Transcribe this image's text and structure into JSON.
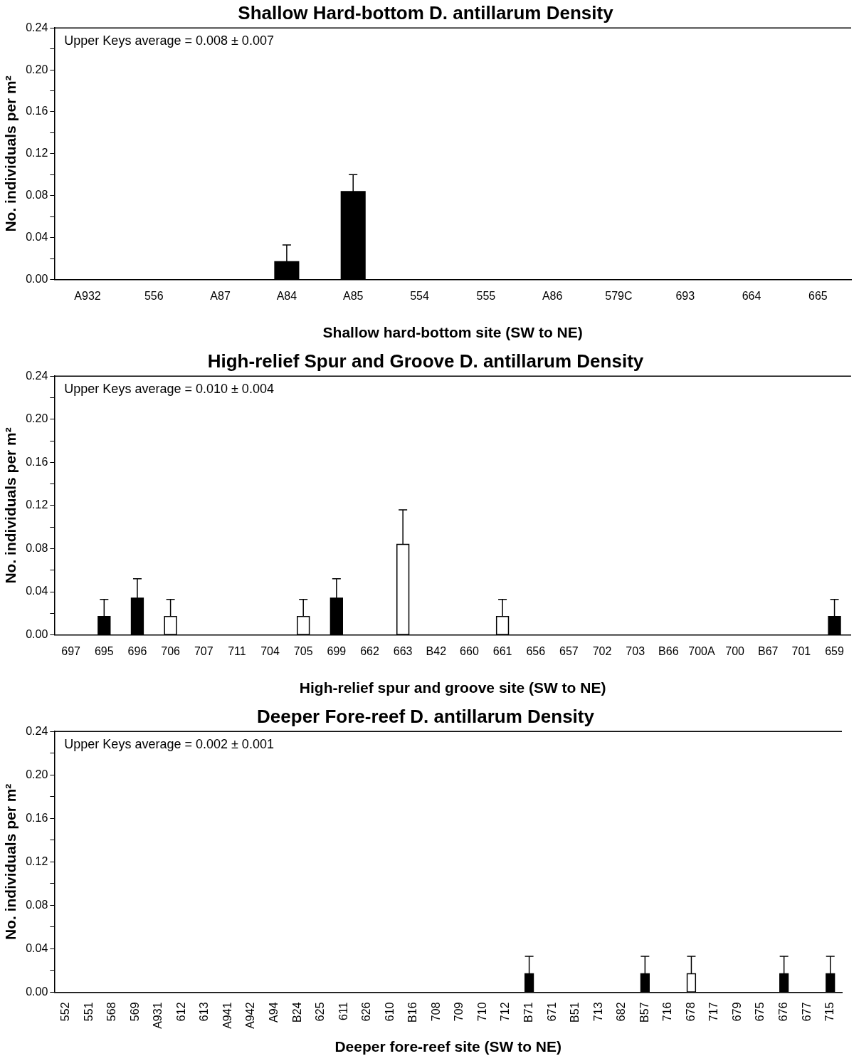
{
  "chart_data": [
    {
      "type": "bar",
      "title": "Shallow Hard-bottom D. antillarum Density",
      "xlabel": "Shallow hard-bottom site (SW to NE)",
      "ylabel": "No. individuals per m²",
      "annotations": [
        "Upper Keys average = 0.008 ± 0.007"
      ],
      "categories": [
        "A932",
        "556",
        "A87",
        "A84",
        "A85",
        "554",
        "555",
        "A86",
        "579C",
        "693",
        "664",
        "665"
      ],
      "values": [
        0,
        0,
        0,
        0.017,
        0.084,
        0,
        0,
        0,
        0,
        0,
        0,
        0
      ],
      "errors": [
        null,
        null,
        null,
        0.016,
        0.016,
        null,
        null,
        null,
        null,
        null,
        null,
        null
      ],
      "colors": [
        "#000000",
        "#000000",
        "#000000",
        "#000000",
        "#000000",
        "#000000",
        "#000000",
        "#000000",
        "#000000",
        "#000000",
        "#000000",
        "#000000"
      ],
      "ylim": [
        0,
        0.24
      ],
      "yticks": [
        {
          "value": 0,
          "label": "0.00"
        },
        {
          "value": 0.02,
          "label": null
        },
        {
          "value": 0.04,
          "label": "0.04"
        },
        {
          "value": 0.06,
          "label": null
        },
        {
          "value": 0.08,
          "label": "0.08"
        },
        {
          "value": 0.1,
          "label": null
        },
        {
          "value": 0.12,
          "label": "0.12"
        },
        {
          "value": 0.14,
          "label": null
        },
        {
          "value": 0.16,
          "label": "0.16"
        },
        {
          "value": 0.18,
          "label": null
        },
        {
          "value": 0.2,
          "label": "0.20"
        },
        {
          "value": 0.22,
          "label": null
        },
        {
          "value": 0.24,
          "label": "0.24"
        }
      ],
      "grid": false,
      "legend": false
    },
    {
      "type": "bar",
      "title": "High-relief Spur and Groove D. antillarum Density",
      "xlabel": "High-relief spur and groove site (SW to NE)",
      "ylabel": "No. individuals per m²",
      "annotations": [
        "Upper Keys average = 0.010 ± 0.004"
      ],
      "categories": [
        "697",
        "695",
        "696",
        "706",
        "707",
        "711",
        "704",
        "705",
        "699",
        "662",
        "663",
        "B42",
        "660",
        "661",
        "656",
        "657",
        "702",
        "703",
        "B66",
        "700A",
        "700",
        "B67",
        "701",
        "659"
      ],
      "values": [
        0,
        0.017,
        0.034,
        0.017,
        0,
        0,
        0,
        0.017,
        0.034,
        0,
        0.084,
        0,
        0,
        0.017,
        0,
        0,
        0,
        0,
        0,
        0,
        0,
        0,
        0,
        0.017
      ],
      "errors": [
        null,
        0.016,
        0.018,
        0.016,
        null,
        null,
        null,
        0.016,
        0.018,
        null,
        0.032,
        null,
        null,
        0.016,
        null,
        null,
        null,
        null,
        null,
        null,
        null,
        null,
        null,
        0.016
      ],
      "colors": [
        "#000000",
        "#000000",
        "#000000",
        "#ffffff",
        "#000000",
        "#000000",
        "#000000",
        "#ffffff",
        "#000000",
        "#000000",
        "#ffffff",
        "#000000",
        "#000000",
        "#ffffff",
        "#000000",
        "#000000",
        "#000000",
        "#000000",
        "#000000",
        "#000000",
        "#000000",
        "#000000",
        "#000000",
        "#000000"
      ],
      "ylim": [
        0,
        0.24
      ],
      "yticks": [
        {
          "value": 0,
          "label": "0.00"
        },
        {
          "value": 0.02,
          "label": null
        },
        {
          "value": 0.04,
          "label": "0.04"
        },
        {
          "value": 0.06,
          "label": null
        },
        {
          "value": 0.08,
          "label": "0.08"
        },
        {
          "value": 0.1,
          "label": null
        },
        {
          "value": 0.12,
          "label": "0.12"
        },
        {
          "value": 0.14,
          "label": null
        },
        {
          "value": 0.16,
          "label": "0.16"
        },
        {
          "value": 0.18,
          "label": null
        },
        {
          "value": 0.2,
          "label": "0.20"
        },
        {
          "value": 0.22,
          "label": null
        },
        {
          "value": 0.24,
          "label": "0.24"
        }
      ],
      "grid": false,
      "legend": false
    },
    {
      "type": "bar",
      "title": "Deeper Fore-reef D. antillarum Density",
      "xlabel": "Deeper fore-reef site (SW to NE)",
      "ylabel": "No. individuals per m²",
      "annotations": [
        "Upper Keys average = 0.002 ± 0.001"
      ],
      "categories": [
        "552",
        "551",
        "568",
        "569",
        "A931",
        "612",
        "613",
        "A941",
        "A942",
        "A94",
        "B24",
        "625",
        "611",
        "626",
        "610",
        "B16",
        "708",
        "709",
        "710",
        "712",
        "B71",
        "671",
        "B51",
        "713",
        "682",
        "B57",
        "716",
        "678",
        "717",
        "679",
        "675",
        "676",
        "677",
        "715"
      ],
      "values": [
        0,
        0,
        0,
        0,
        0,
        0,
        0,
        0,
        0,
        0,
        0,
        0,
        0,
        0,
        0,
        0,
        0,
        0,
        0,
        0,
        0.017,
        0,
        0,
        0,
        0,
        0.017,
        0,
        0.017,
        0,
        0,
        0,
        0.017,
        0,
        0.017
      ],
      "errors": [
        null,
        null,
        null,
        null,
        null,
        null,
        null,
        null,
        null,
        null,
        null,
        null,
        null,
        null,
        null,
        null,
        null,
        null,
        null,
        null,
        0.016,
        null,
        null,
        null,
        null,
        0.016,
        null,
        0.016,
        null,
        null,
        null,
        0.016,
        null,
        0.016
      ],
      "colors": [
        "#000000",
        "#000000",
        "#000000",
        "#000000",
        "#000000",
        "#000000",
        "#000000",
        "#000000",
        "#000000",
        "#000000",
        "#000000",
        "#000000",
        "#000000",
        "#000000",
        "#000000",
        "#000000",
        "#000000",
        "#000000",
        "#000000",
        "#000000",
        "#000000",
        "#000000",
        "#000000",
        "#000000",
        "#000000",
        "#000000",
        "#000000",
        "#ffffff",
        "#000000",
        "#000000",
        "#000000",
        "#000000",
        "#000000",
        "#000000"
      ],
      "ylim": [
        0,
        0.24
      ],
      "yticks": [
        {
          "value": 0,
          "label": "0.00"
        },
        {
          "value": 0.02,
          "label": null
        },
        {
          "value": 0.04,
          "label": "0.04"
        },
        {
          "value": 0.06,
          "label": null
        },
        {
          "value": 0.08,
          "label": "0.08"
        },
        {
          "value": 0.1,
          "label": null
        },
        {
          "value": 0.12,
          "label": "0.12"
        },
        {
          "value": 0.14,
          "label": null
        },
        {
          "value": 0.16,
          "label": "0.16"
        },
        {
          "value": 0.18,
          "label": null
        },
        {
          "value": 0.2,
          "label": "0.20"
        },
        {
          "value": 0.22,
          "label": null
        },
        {
          "value": 0.24,
          "label": "0.24"
        }
      ],
      "grid": false,
      "legend": false
    }
  ]
}
